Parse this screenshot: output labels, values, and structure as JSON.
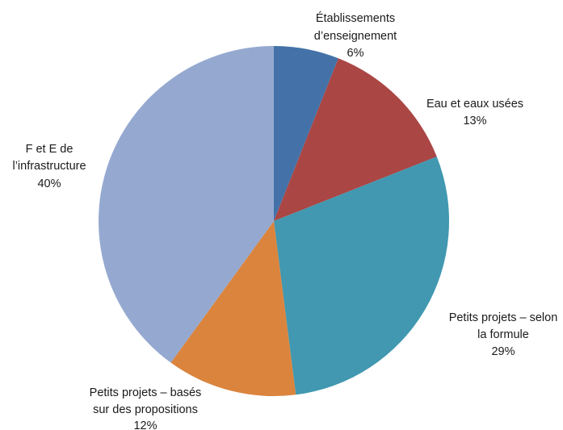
{
  "chart_data": {
    "type": "pie",
    "title": "",
    "slices": [
      {
        "label_lines": [
          "Établissements",
          "d’enseignement"
        ],
        "percent_text": "6%",
        "value": 6,
        "color": "#4472a8"
      },
      {
        "label_lines": [
          "Eau et eaux usées"
        ],
        "percent_text": "13%",
        "value": 13,
        "color": "#aa4644"
      },
      {
        "label_lines": [
          "Petits projets – selon",
          "la formule"
        ],
        "percent_text": "29%",
        "value": 29,
        "color": "#4198b0"
      },
      {
        "label_lines": [
          "Petits projets – basés",
          "sur des propositions"
        ],
        "percent_text": "12%",
        "value": 12,
        "color": "#db843d"
      },
      {
        "label_lines": [
          "F et E de",
          "l’infrastructure"
        ],
        "percent_text": "40%",
        "value": 40,
        "color": "#95a9d0"
      }
    ]
  }
}
